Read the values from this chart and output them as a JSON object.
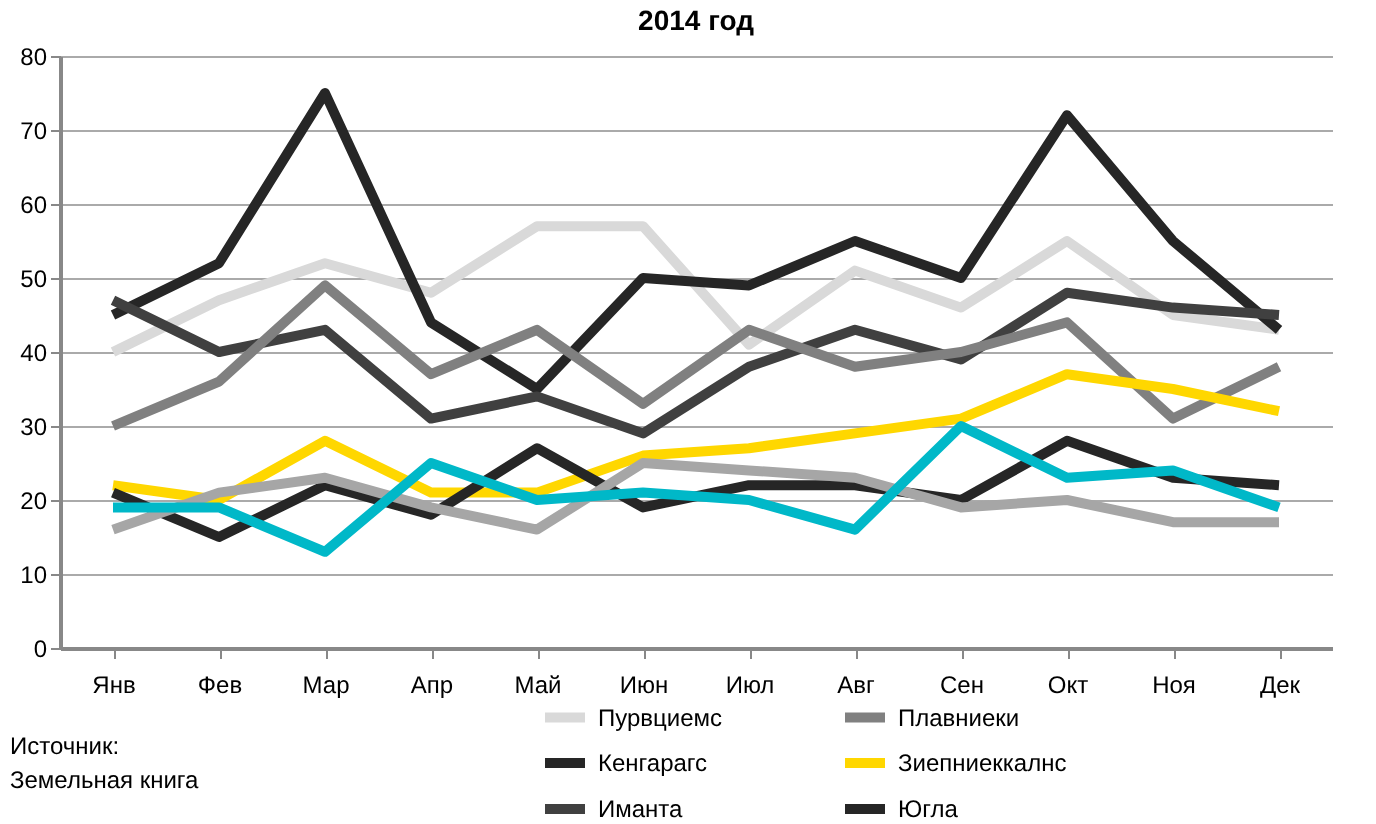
{
  "chart_data": {
    "type": "line",
    "title": "2014 год",
    "categories": [
      "Янв",
      "Фев",
      "Мар",
      "Апр",
      "Май",
      "Июн",
      "Июл",
      "Авг",
      "Сен",
      "Окт",
      "Ноя",
      "Дек"
    ],
    "series": [
      {
        "name": "Пурвциемс",
        "color": "#d9d9d9",
        "values": [
          40,
          47,
          52,
          48,
          57,
          57,
          41,
          51,
          46,
          55,
          45,
          43
        ]
      },
      {
        "name": "Кенгарагс",
        "color": "#262626",
        "values": [
          45,
          52,
          75,
          44,
          35,
          50,
          49,
          55,
          50,
          72,
          55,
          43
        ]
      },
      {
        "name": "Иманта",
        "color": "#404040",
        "values": [
          47,
          40,
          43,
          31,
          34,
          29,
          38,
          43,
          39,
          48,
          46,
          45
        ]
      },
      {
        "name": "Плавниеки",
        "color": "#808080",
        "values": [
          30,
          36,
          49,
          37,
          43,
          33,
          43,
          38,
          40,
          44,
          31,
          38
        ]
      },
      {
        "name": "Зиепниеккалнс",
        "color": "#ffd700",
        "values": [
          22,
          20,
          28,
          21,
          21,
          26,
          27,
          29,
          31,
          37,
          35,
          32
        ]
      },
      {
        "name": "Югла",
        "color": "#262626",
        "values": [
          21,
          15,
          22,
          18,
          27,
          19,
          22,
          22,
          20,
          28,
          23,
          22
        ]
      },
      {
        "color": "#a6a6a6",
        "values": [
          16,
          21,
          23,
          19,
          16,
          25,
          24,
          23,
          19,
          20,
          17,
          17
        ]
      },
      {
        "color": "#00b8c8",
        "values": [
          19,
          19,
          13,
          25,
          20,
          21,
          20,
          16,
          30,
          23,
          24,
          19
        ]
      }
    ],
    "ylim": [
      0,
      80
    ],
    "yticks": [
      0,
      10,
      20,
      30,
      40,
      50,
      60,
      70,
      80
    ],
    "grid": "y",
    "legend": "bottom",
    "marker": "none",
    "line_style": "solid",
    "annotations": [
      "Источник:\nЗемельная книга"
    ]
  }
}
